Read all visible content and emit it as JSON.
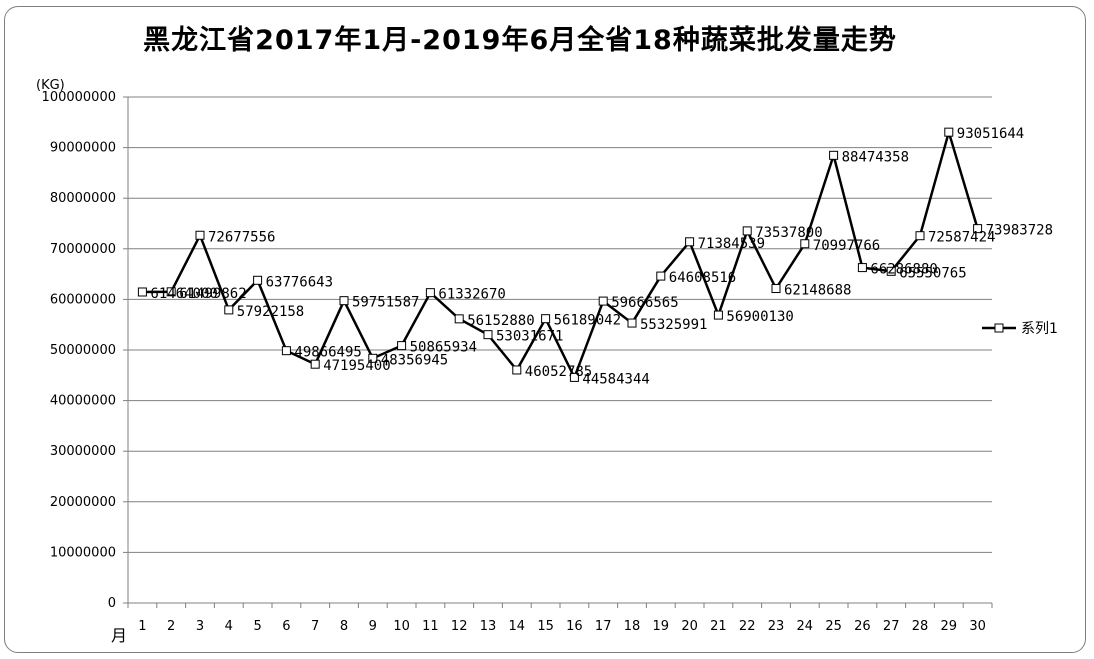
{
  "chart_data": {
    "type": "line",
    "title": "黑龙江省2017年1月-2019年6月全省18种蔬菜批发量走势",
    "ylabel": "(KG)",
    "xlabel": "月",
    "ylim": [
      0,
      100000000
    ],
    "ytick_step": 10000000,
    "grid": true,
    "legend_position": "right",
    "x": [
      1,
      2,
      3,
      4,
      5,
      6,
      7,
      8,
      9,
      10,
      11,
      12,
      13,
      14,
      15,
      16,
      17,
      18,
      19,
      20,
      21,
      22,
      23,
      24,
      25,
      26,
      27,
      28,
      29,
      30
    ],
    "series": [
      {
        "name": "系列1",
        "color": "#000000",
        "values": [
          61464000,
          61499862,
          72677556,
          57922158,
          63776643,
          49866495,
          47195400,
          59751587,
          48356945,
          50865934,
          61332670,
          56152880,
          53031671,
          46052785,
          56189042,
          44584344,
          59666565,
          55325991,
          64608516,
          71384539,
          56900130,
          73537800,
          62148688,
          70997766,
          88474358,
          66286880,
          65550765,
          72587424,
          93051644,
          73983728
        ],
        "labels": [
          "61464000",
          "61499862",
          "72677556",
          "57922158",
          "63776643",
          "49866495",
          "47195400",
          "59751587",
          "48356945",
          "50865934",
          "61332670",
          "56152880",
          "53031671",
          "46052785",
          "56189042",
          "44584344",
          "59666565",
          "55325991",
          "64608516",
          "71384539",
          "56900130",
          "73537800",
          "62148688",
          "70997766",
          "88474358",
          "66286880",
          "65550765",
          "72587424",
          "93051644",
          "73983728"
        ]
      }
    ]
  }
}
